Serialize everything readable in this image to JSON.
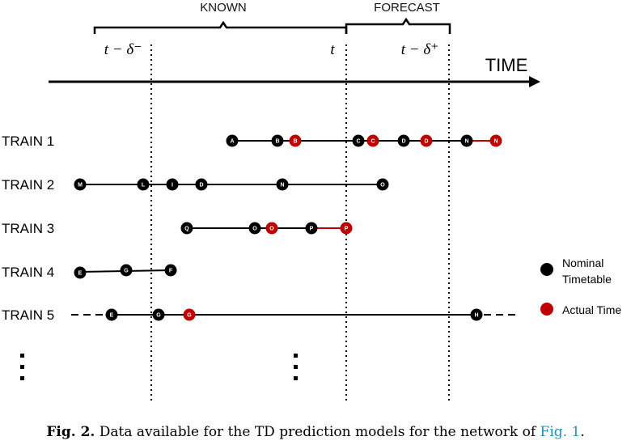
{
  "brackets": {
    "known": "KNOWN",
    "forecast": "FORECAST"
  },
  "markers": {
    "past": "t − δ⁻",
    "now": "t",
    "future": "t − δ⁺"
  },
  "axis_label": "TIME",
  "trains": [
    {
      "label": "TRAIN 1",
      "segments": [
        {
          "from": 0,
          "to": 6,
          "color": "#000000"
        },
        {
          "from": 6,
          "to": 7,
          "color": "#c00000"
        }
      ],
      "nodes": [
        {
          "letter": "A",
          "type": "nominal"
        },
        {
          "letter": "B",
          "type": "nominal"
        },
        {
          "letter": "B",
          "type": "actual"
        },
        {
          "letter": "C",
          "type": "nominal"
        },
        {
          "letter": "C",
          "type": "actual"
        },
        {
          "letter": "D",
          "type": "nominal"
        },
        {
          "letter": "D",
          "type": "actual"
        },
        {
          "letter": "N",
          "type": "nominal"
        },
        {
          "letter": "N",
          "type": "actual"
        }
      ]
    },
    {
      "label": "TRAIN 2",
      "segments": [
        {
          "from": 0,
          "to": 5,
          "color": "#000000"
        }
      ],
      "nodes": [
        {
          "letter": "M",
          "type": "nominal"
        },
        {
          "letter": "L",
          "type": "nominal"
        },
        {
          "letter": "I",
          "type": "nominal"
        },
        {
          "letter": "D",
          "type": "nominal"
        },
        {
          "letter": "N",
          "type": "nominal"
        },
        {
          "letter": "O",
          "type": "nominal"
        }
      ]
    },
    {
      "label": "TRAIN 3",
      "segments": [
        {
          "from": 0,
          "to": 3,
          "color": "#000000"
        },
        {
          "from": 3,
          "to": 4,
          "color": "#c00000"
        }
      ],
      "nodes": [
        {
          "letter": "Q",
          "type": "nominal"
        },
        {
          "letter": "O",
          "type": "nominal"
        },
        {
          "letter": "O",
          "type": "actual"
        },
        {
          "letter": "P",
          "type": "nominal"
        },
        {
          "letter": "P",
          "type": "actual"
        }
      ]
    },
    {
      "label": "TRAIN 4",
      "segments": [
        {
          "from": 0,
          "to": 2,
          "color": "#000000"
        }
      ],
      "nodes": [
        {
          "letter": "E",
          "type": "nominal"
        },
        {
          "letter": "G",
          "type": "nominal"
        },
        {
          "letter": "F",
          "type": "nominal"
        }
      ]
    },
    {
      "label": "TRAIN 5",
      "segments": [
        {
          "from": 0,
          "to": 3,
          "color": "#000000"
        }
      ],
      "dashed_ends": true,
      "nodes": [
        {
          "letter": "E",
          "type": "nominal"
        },
        {
          "letter": "G",
          "type": "nominal"
        },
        {
          "letter": "G",
          "type": "actual"
        },
        {
          "letter": "H",
          "type": "nominal"
        }
      ]
    }
  ],
  "legend": {
    "nominal_label_line1": "Nominal",
    "nominal_label_line2": "Timetable",
    "actual_label": "Actual Time",
    "nominal_color": "#000000",
    "actual_color": "#c00000"
  },
  "caption": {
    "prefix": "Fig. 2.",
    "text": "Data available for the TD prediction models for the network of",
    "ref": "Fig. 1",
    "suffix": "."
  }
}
